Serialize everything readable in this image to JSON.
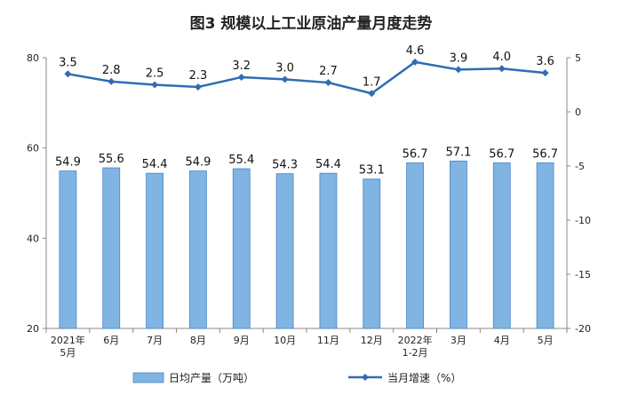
{
  "chart_data": {
    "type": "bar+line",
    "title": "图3  规模以上工业原油产量月度走势",
    "categories": [
      [
        "2021年",
        "5月"
      ],
      [
        "6月"
      ],
      [
        "7月"
      ],
      [
        "8月"
      ],
      [
        "9月"
      ],
      [
        "10月"
      ],
      [
        "11月"
      ],
      [
        "12月"
      ],
      [
        "2022年",
        "1-2月"
      ],
      [
        "3月"
      ],
      [
        "4月"
      ],
      [
        "5月"
      ]
    ],
    "series": [
      {
        "name": "日均产量（万吨）",
        "type": "bar",
        "axis": "left",
        "color": "#7fb4e3",
        "values": [
          54.9,
          55.6,
          54.4,
          54.9,
          55.4,
          54.3,
          54.4,
          53.1,
          56.7,
          57.1,
          56.7,
          56.7
        ]
      },
      {
        "name": "当月增速（%）",
        "type": "line",
        "axis": "right",
        "color": "#2e6db4",
        "values": [
          3.5,
          2.8,
          2.5,
          2.3,
          3.2,
          3.0,
          2.7,
          1.7,
          4.6,
          3.9,
          4.0,
          3.6
        ]
      }
    ],
    "y_left": {
      "min": 20,
      "max": 80,
      "ticks": [
        20,
        40,
        60,
        80
      ]
    },
    "y_right": {
      "min": -20,
      "max": 5,
      "ticks": [
        -20,
        -15,
        -10,
        -5,
        0,
        5
      ]
    },
    "legend_position": "bottom"
  }
}
